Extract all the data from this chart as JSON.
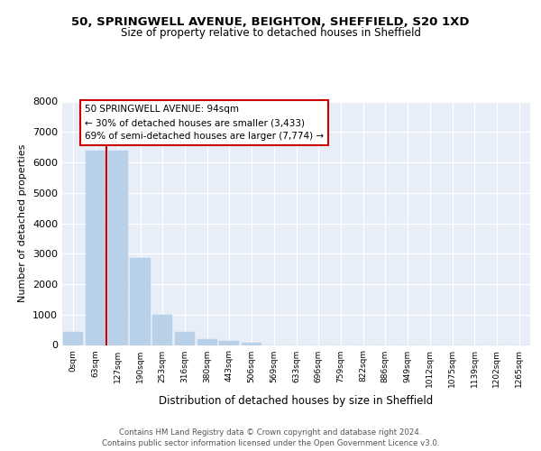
{
  "title_line1": "50, SPRINGWELL AVENUE, BEIGHTON, SHEFFIELD, S20 1XD",
  "title_line2": "Size of property relative to detached houses in Sheffield",
  "xlabel": "Distribution of detached houses by size in Sheffield",
  "ylabel": "Number of detached properties",
  "categories": [
    "0sqm",
    "63sqm",
    "127sqm",
    "190sqm",
    "253sqm",
    "316sqm",
    "380sqm",
    "443sqm",
    "506sqm",
    "569sqm",
    "633sqm",
    "696sqm",
    "759sqm",
    "822sqm",
    "886sqm",
    "949sqm",
    "1012sqm",
    "1075sqm",
    "1139sqm",
    "1202sqm",
    "1265sqm"
  ],
  "values": [
    430,
    6400,
    6400,
    2850,
    1000,
    430,
    200,
    130,
    80,
    0,
    0,
    0,
    0,
    0,
    0,
    0,
    0,
    0,
    0,
    0,
    0
  ],
  "bar_color": "#b8d0e8",
  "vline_x": 1.5,
  "vline_color": "#cc0000",
  "annotation_text": "50 SPRINGWELL AVENUE: 94sqm\n← 30% of detached houses are smaller (3,433)\n69% of semi-detached houses are larger (7,774) →",
  "annotation_box_color": "white",
  "annotation_box_edge_color": "#cc0000",
  "ylim": [
    0,
    8000
  ],
  "yticks": [
    0,
    1000,
    2000,
    3000,
    4000,
    5000,
    6000,
    7000,
    8000
  ],
  "footer_text": "Contains HM Land Registry data © Crown copyright and database right 2024.\nContains public sector information licensed under the Open Government Licence v3.0.",
  "plot_bg_color": "#e8eef8",
  "grid_color": "#ffffff"
}
